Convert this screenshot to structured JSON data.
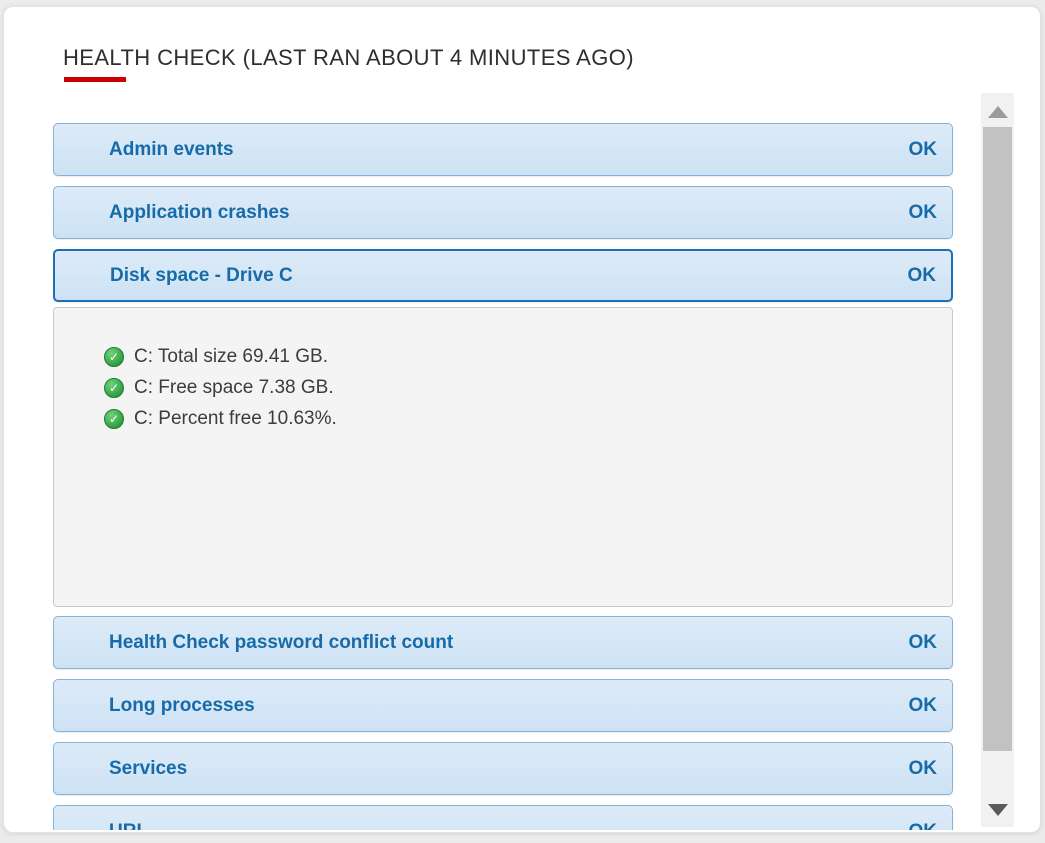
{
  "page": {
    "title": "HEALTH CHECK (LAST RAN ABOUT 4 MINUTES AGO)"
  },
  "colors": {
    "accent_red": "#cc0000",
    "header_text_blue": "#176ba8",
    "header_bg_blue": "#cde2f4",
    "header_border_blue": "#85b2d9",
    "active_border_blue": "#1d6fb7",
    "status_icon_green": "#31a041",
    "panel_bg_gray": "#f4f4f4"
  },
  "accordion": {
    "sections": [
      {
        "label": "Admin events",
        "status": "OK",
        "state": "collapsed"
      },
      {
        "label": "Application crashes",
        "status": "OK",
        "state": "collapsed"
      },
      {
        "label": "Disk space - Drive C",
        "status": "OK",
        "state": "expanded",
        "details": [
          {
            "icon": "check-circle-green-icon",
            "text": "C: Total size 69.41 GB."
          },
          {
            "icon": "check-circle-green-icon",
            "text": "C: Free space 7.38 GB."
          },
          {
            "icon": "check-circle-green-icon",
            "text": "C: Percent free 10.63%."
          }
        ]
      },
      {
        "label": "Health Check password conflict count",
        "status": "OK",
        "state": "collapsed"
      },
      {
        "label": "Long processes",
        "status": "OK",
        "state": "collapsed"
      },
      {
        "label": "Services",
        "status": "OK",
        "state": "collapsed"
      },
      {
        "label": "URL",
        "status": "OK",
        "state": "collapsed"
      }
    ]
  },
  "scrollbar": {
    "up_icon": "triangle-up-icon",
    "down_icon": "triangle-down-icon"
  }
}
